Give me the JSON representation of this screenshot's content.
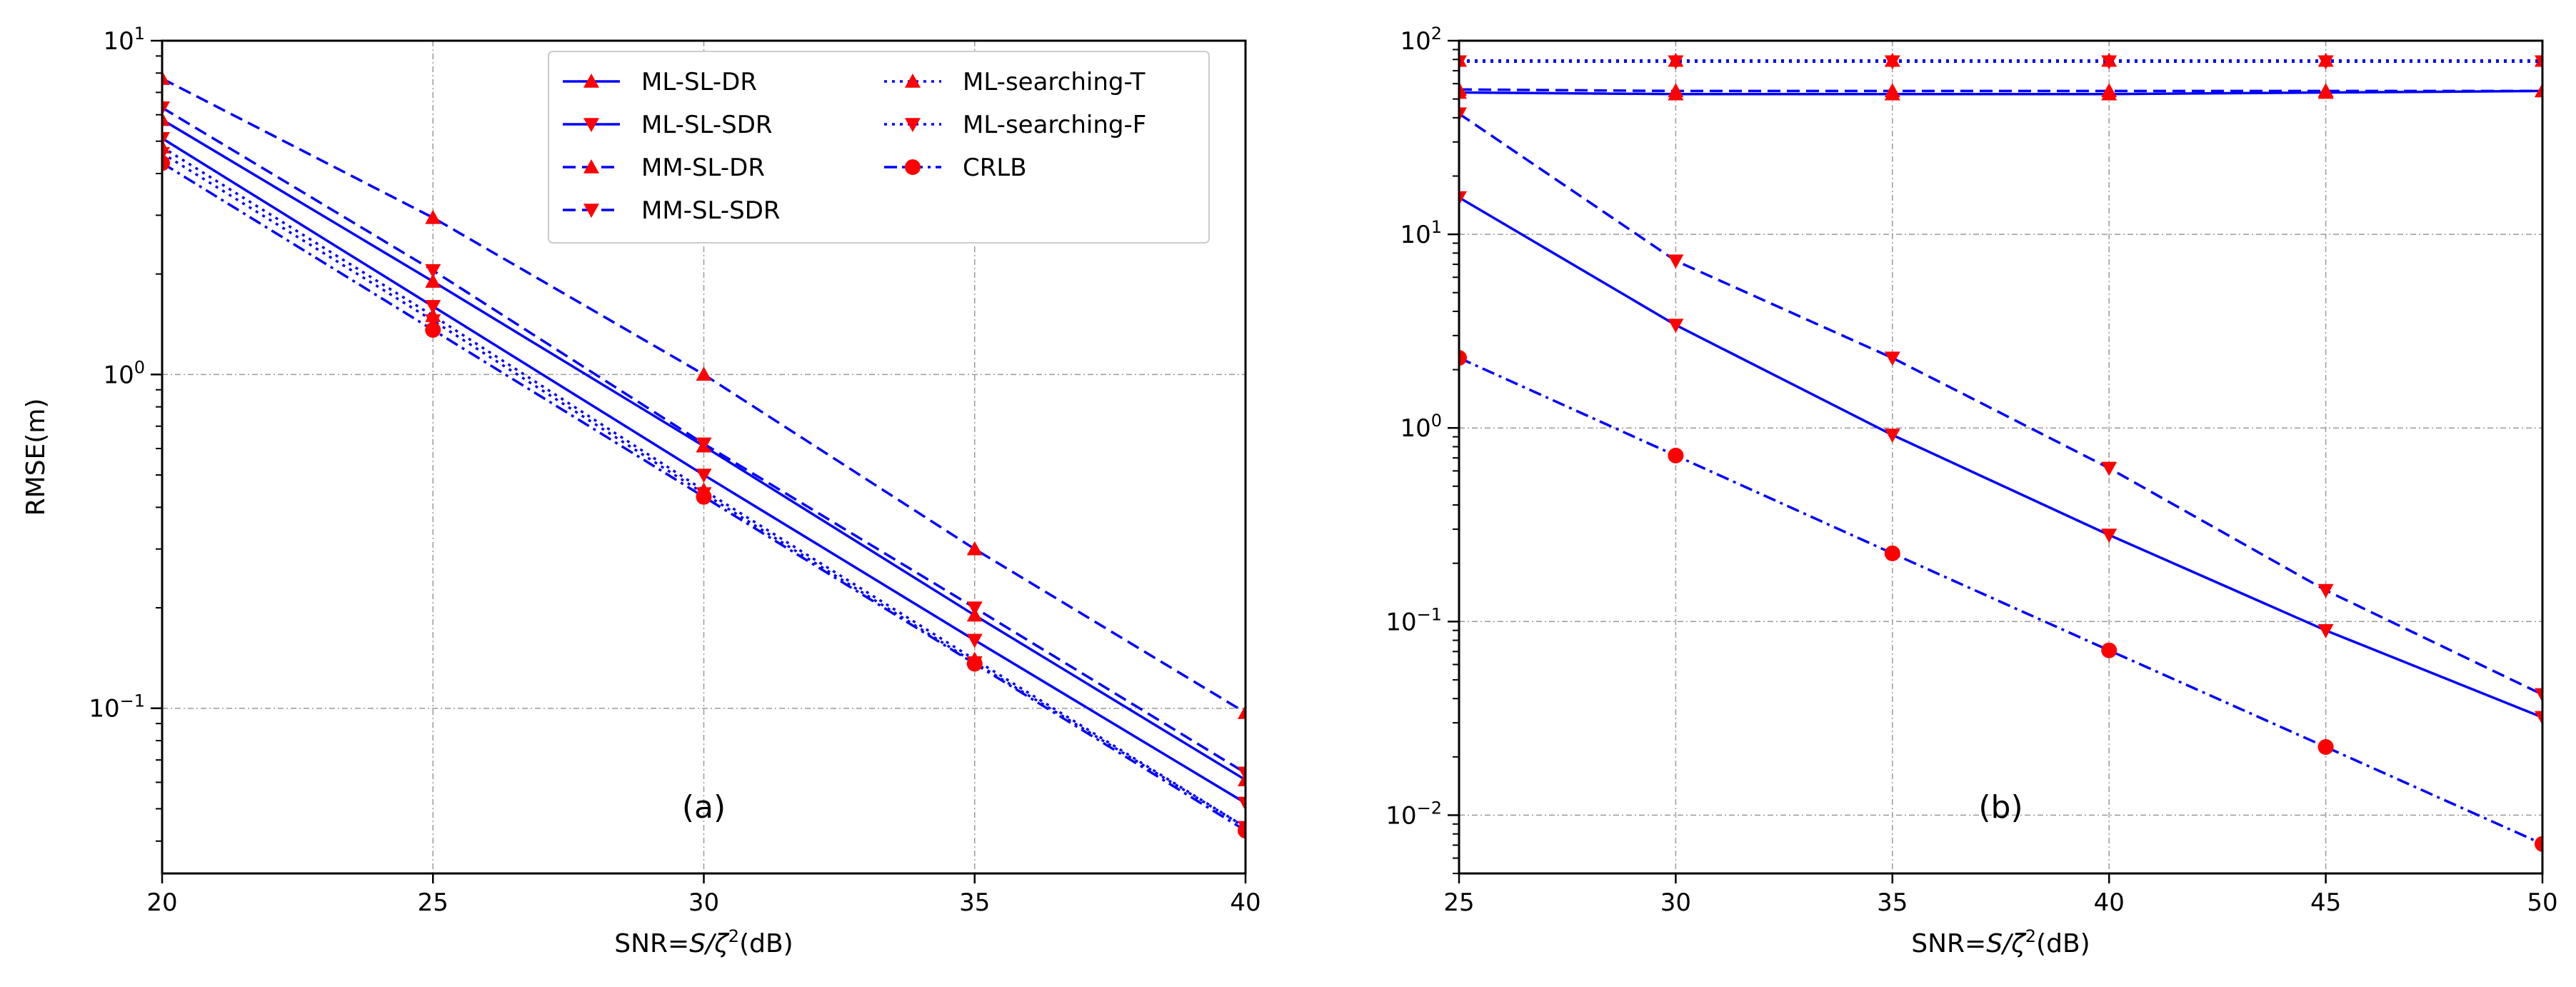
{
  "chart_data": [
    {
      "type": "line",
      "panel_label": "(a)",
      "xlabel_prefix": "SNR=",
      "xlabel_var": "S/ζ",
      "xlabel_suffix": "(dB)",
      "ylabel": "RMSE(m)",
      "yscale": "log",
      "grid": true,
      "xlim": [
        20,
        40
      ],
      "ylim": [
        0.032,
        10
      ],
      "xticks": [
        20,
        25,
        30,
        35,
        40
      ],
      "yticks": [
        {
          "base": "10",
          "exp": "−1",
          "value": 0.1
        },
        {
          "base": "10",
          "exp": "0",
          "value": 1
        },
        {
          "base": "10",
          "exp": "1",
          "value": 10
        }
      ],
      "x": [
        20,
        25,
        30,
        35,
        40
      ],
      "series": [
        {
          "name": "ML-SL-DR",
          "style": "solid",
          "marker": "triangle-up",
          "values": [
            5.8,
            1.9,
            0.61,
            0.19,
            0.061
          ]
        },
        {
          "name": "ML-SL-SDR",
          "style": "solid",
          "marker": "triangle-down",
          "values": [
            5.1,
            1.6,
            0.5,
            0.16,
            0.052
          ]
        },
        {
          "name": "MM-SL-DR",
          "style": "dashed",
          "marker": "triangle-up",
          "values": [
            7.7,
            2.95,
            1.0,
            0.3,
            0.097
          ]
        },
        {
          "name": "MM-SL-SDR",
          "style": "dashed",
          "marker": "triangle-down",
          "values": [
            6.3,
            2.05,
            0.62,
            0.2,
            0.064
          ]
        },
        {
          "name": "ML-searching-T",
          "style": "dotted",
          "marker": "triangle-up",
          "values": [
            4.8,
            1.5,
            0.45,
            0.14,
            0.044
          ]
        },
        {
          "name": "ML-searching-F",
          "style": "dotted",
          "marker": "triangle-down",
          "values": [
            4.6,
            1.45,
            0.44,
            0.137,
            0.044
          ]
        },
        {
          "name": "CRLB",
          "style": "dashdot",
          "marker": "circle",
          "values": [
            4.3,
            1.36,
            0.43,
            0.136,
            0.043
          ]
        }
      ]
    },
    {
      "type": "line",
      "panel_label": "(b)",
      "xlabel_prefix": "SNR=",
      "xlabel_var": "S/ζ",
      "xlabel_suffix": "(dB)",
      "ylabel": "",
      "yscale": "log",
      "grid": true,
      "xlim": [
        25,
        50
      ],
      "ylim": [
        0.005,
        100
      ],
      "xticks": [
        25,
        30,
        35,
        40,
        45,
        50
      ],
      "yticks": [
        {
          "base": "10",
          "exp": "−2",
          "value": 0.01
        },
        {
          "base": "10",
          "exp": "−1",
          "value": 0.1
        },
        {
          "base": "10",
          "exp": "0",
          "value": 1
        },
        {
          "base": "10",
          "exp": "1",
          "value": 10
        },
        {
          "base": "10",
          "exp": "2",
          "value": 100
        }
      ],
      "x": [
        25,
        30,
        35,
        40,
        45,
        50
      ],
      "series": [
        {
          "name": "ML-SL-DR",
          "style": "solid",
          "marker": "triangle-up",
          "values": [
            54,
            53,
            53,
            53,
            54,
            55
          ]
        },
        {
          "name": "ML-SL-SDR",
          "style": "solid",
          "marker": "triangle-down",
          "values": [
            15.5,
            3.4,
            0.92,
            0.28,
            0.09,
            0.032
          ]
        },
        {
          "name": "MM-SL-DR",
          "style": "dashed",
          "marker": "triangle-up",
          "values": [
            56,
            55,
            55,
            55,
            55,
            55
          ]
        },
        {
          "name": "MM-SL-SDR",
          "style": "dashed",
          "marker": "triangle-down",
          "values": [
            42,
            7.3,
            2.3,
            0.62,
            0.145,
            0.042
          ]
        },
        {
          "name": "ML-searching-T",
          "style": "dotted",
          "marker": "triangle-up",
          "values": [
            79,
            79,
            79,
            79,
            79,
            79
          ]
        },
        {
          "name": "ML-searching-F",
          "style": "dotted",
          "marker": "triangle-down",
          "values": [
            78,
            78,
            78,
            78,
            78,
            78
          ]
        },
        {
          "name": "CRLB",
          "style": "dashdot",
          "marker": "circle",
          "values": [
            2.3,
            0.72,
            0.225,
            0.071,
            0.0225,
            0.0071
          ]
        }
      ]
    }
  ],
  "legend": {
    "entries": [
      "ML-SL-DR",
      "ML-SL-SDR",
      "MM-SL-DR",
      "MM-SL-SDR",
      "ML-searching-T",
      "ML-searching-F",
      "CRLB"
    ],
    "placement": "top-right of panel (a)"
  },
  "colors": {
    "line": "#0000ff",
    "marker": "#ff0000",
    "grid": "#9a9a9a",
    "axis": "#000000"
  }
}
